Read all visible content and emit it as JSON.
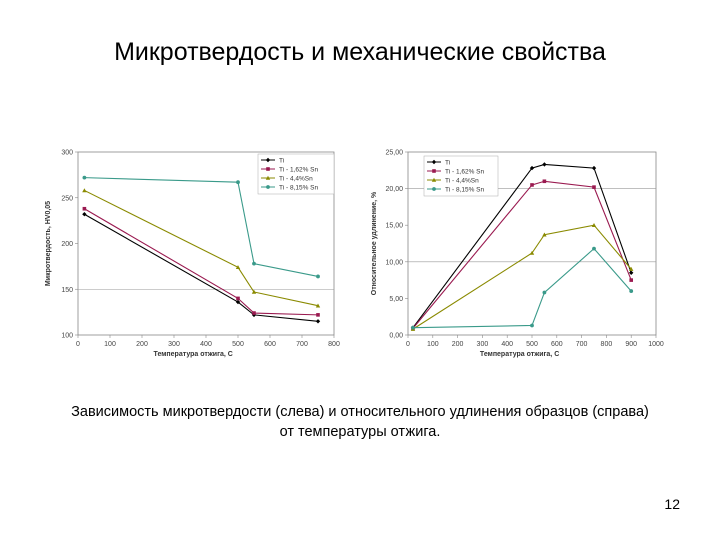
{
  "slide": {
    "title": "Микротвердость и механические свойства",
    "caption_line1": "Зависимость микротвердости (слева) и относительного удлинения образцов (справа)",
    "caption_line2": "от температуры отжига.",
    "page_number": "12"
  },
  "chart_data": [
    {
      "type": "line",
      "title": "",
      "xlabel": "Температура отжига, С",
      "ylabel": "Микротвердость, HV0,05",
      "xlim": [
        0,
        800
      ],
      "ylim": [
        100,
        300
      ],
      "x_ticks": [
        "0",
        "100",
        "200",
        "300",
        "400",
        "500",
        "600",
        "700",
        "800"
      ],
      "y_ticks": [
        "100",
        "150",
        "200",
        "250",
        "300"
      ],
      "gridlines_y": [
        150
      ],
      "legend_position": "top-right",
      "series": [
        {
          "name": "Ti",
          "color": "#000000",
          "marker": "diamond",
          "x": [
            20,
            500,
            550,
            750
          ],
          "y": [
            232,
            136,
            122,
            115
          ]
        },
        {
          "name": "Ti - 1,62% Sn",
          "color": "#9a1a50",
          "marker": "square",
          "x": [
            20,
            500,
            550,
            750
          ],
          "y": [
            238,
            140,
            124,
            122
          ]
        },
        {
          "name": "Ti - 4,4%Sn",
          "color": "#8a8a00",
          "marker": "triangle",
          "x": [
            20,
            500,
            550,
            750
          ],
          "y": [
            258,
            174,
            147,
            132
          ]
        },
        {
          "name": "Ti - 8,15% Sn",
          "color": "#3a9a8a",
          "marker": "circle",
          "x": [
            20,
            500,
            550,
            750
          ],
          "y": [
            272,
            267,
            178,
            164
          ]
        }
      ]
    },
    {
      "type": "line",
      "title": "",
      "xlabel": "Температура отжига, С",
      "ylabel": "Относительное удлинение, %",
      "xlim": [
        0,
        1000
      ],
      "ylim": [
        0,
        25
      ],
      "x_ticks": [
        "0",
        "100",
        "200",
        "300",
        "400",
        "500",
        "600",
        "700",
        "800",
        "900",
        "1000"
      ],
      "y_ticks": [
        "0,00",
        "5,00",
        "10,00",
        "15,00",
        "20,00",
        "25,00"
      ],
      "gridlines_y": [
        10,
        20
      ],
      "legend_position": "top-left",
      "series": [
        {
          "name": "Ti",
          "color": "#000000",
          "marker": "diamond",
          "x": [
            20,
            500,
            550,
            750,
            900
          ],
          "y": [
            1.0,
            22.8,
            23.3,
            22.8,
            8.5
          ]
        },
        {
          "name": "Ti - 1,62% Sn",
          "color": "#9a1a50",
          "marker": "square",
          "x": [
            20,
            500,
            550,
            750,
            900
          ],
          "y": [
            0.9,
            20.5,
            21.0,
            20.2,
            7.5
          ]
        },
        {
          "name": "Ti - 4,4%Sn",
          "color": "#8a8a00",
          "marker": "triangle",
          "x": [
            20,
            500,
            550,
            750,
            900
          ],
          "y": [
            0.8,
            11.2,
            13.7,
            15.0,
            9.0
          ]
        },
        {
          "name": "Ti - 8,15% Sn",
          "color": "#3a9a8a",
          "marker": "circle",
          "x": [
            20,
            500,
            550,
            750,
            900
          ],
          "y": [
            1.0,
            1.3,
            5.8,
            11.8,
            6.0
          ]
        }
      ]
    }
  ]
}
